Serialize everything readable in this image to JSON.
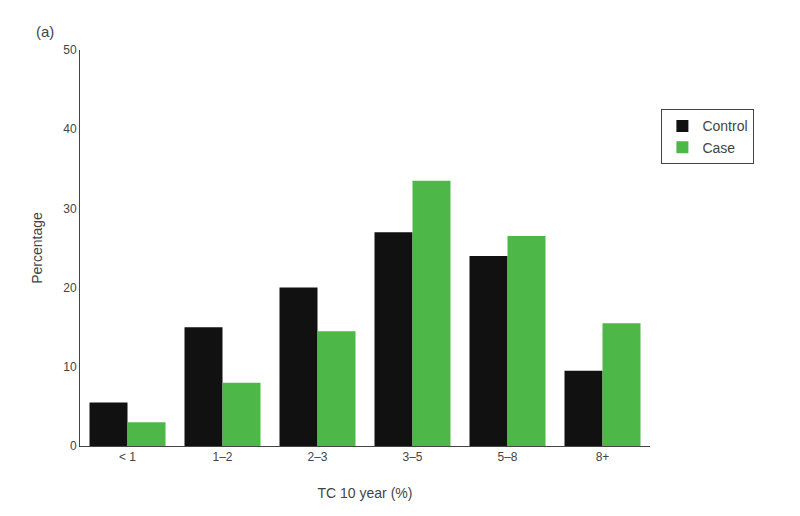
{
  "chart_data": {
    "type": "bar",
    "categories": [
      "< 1",
      "1–2",
      "2–3",
      "3–5",
      "5–8",
      "8+"
    ],
    "series": [
      {
        "name": "Control",
        "color": "#111111",
        "values": [
          5.5,
          15.0,
          20.0,
          27.0,
          24.0,
          9.5
        ]
      },
      {
        "name": "Case",
        "color": "#4db848",
        "values": [
          3.0,
          8.0,
          14.5,
          33.5,
          26.5,
          15.5
        ]
      }
    ],
    "xlabel": "TC 10 year (%)",
    "ylabel": "Percentage",
    "ylim": [
      0,
      50
    ],
    "yticks": [
      0,
      10,
      20,
      30,
      40,
      50
    ],
    "grid": false,
    "legend": "right",
    "annotations": [
      "(a)"
    ]
  }
}
